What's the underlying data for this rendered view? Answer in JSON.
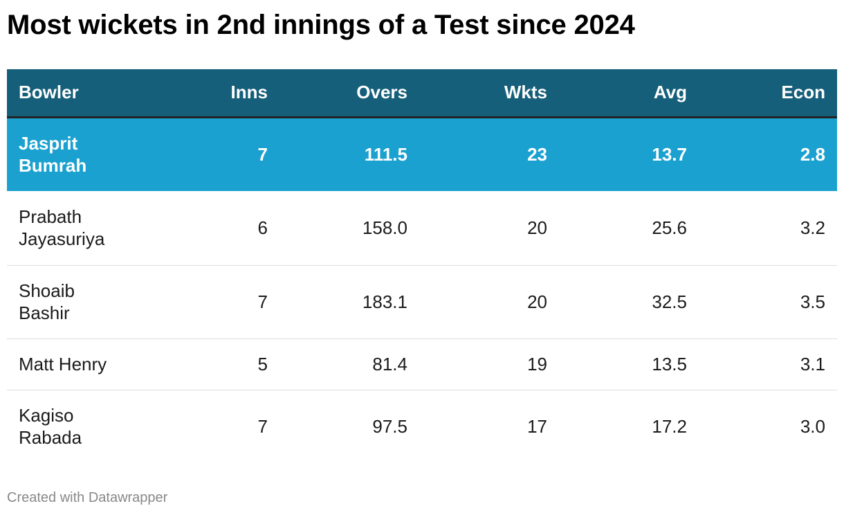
{
  "title": "Most wickets in 2nd innings of a Test since 2024",
  "footer": "Created with Datawrapper",
  "colors": {
    "header_background": "#165f7a",
    "highlight_row_background": "#1aa1d0",
    "header_text": "#ffffff"
  },
  "chart_data": {
    "type": "table",
    "title": "Most wickets in 2nd innings of a Test since 2024",
    "columns": [
      "Bowler",
      "Inns",
      "Overs",
      "Wkts",
      "Avg",
      "Econ"
    ],
    "rows": [
      {
        "bowler_line1": "Jasprit",
        "bowler_line2": "Bumrah",
        "inns": "7",
        "overs": "111.5",
        "wkts": "23",
        "avg": "13.7",
        "econ": "2.8",
        "highlighted": true
      },
      {
        "bowler_line1": "Prabath",
        "bowler_line2": "Jayasuriya",
        "inns": "6",
        "overs": "158.0",
        "wkts": "20",
        "avg": "25.6",
        "econ": "3.2",
        "highlighted": false
      },
      {
        "bowler_line1": "Shoaib",
        "bowler_line2": "Bashir",
        "inns": "7",
        "overs": "183.1",
        "wkts": "20",
        "avg": "32.5",
        "econ": "3.5",
        "highlighted": false
      },
      {
        "bowler_line1": "Matt Henry",
        "bowler_line2": "",
        "inns": "5",
        "overs": "81.4",
        "wkts": "19",
        "avg": "13.5",
        "econ": "3.1",
        "highlighted": false
      },
      {
        "bowler_line1": "Kagiso",
        "bowler_line2": "Rabada",
        "inns": "7",
        "overs": "97.5",
        "wkts": "17",
        "avg": "17.2",
        "econ": "3.0",
        "highlighted": false
      }
    ]
  }
}
